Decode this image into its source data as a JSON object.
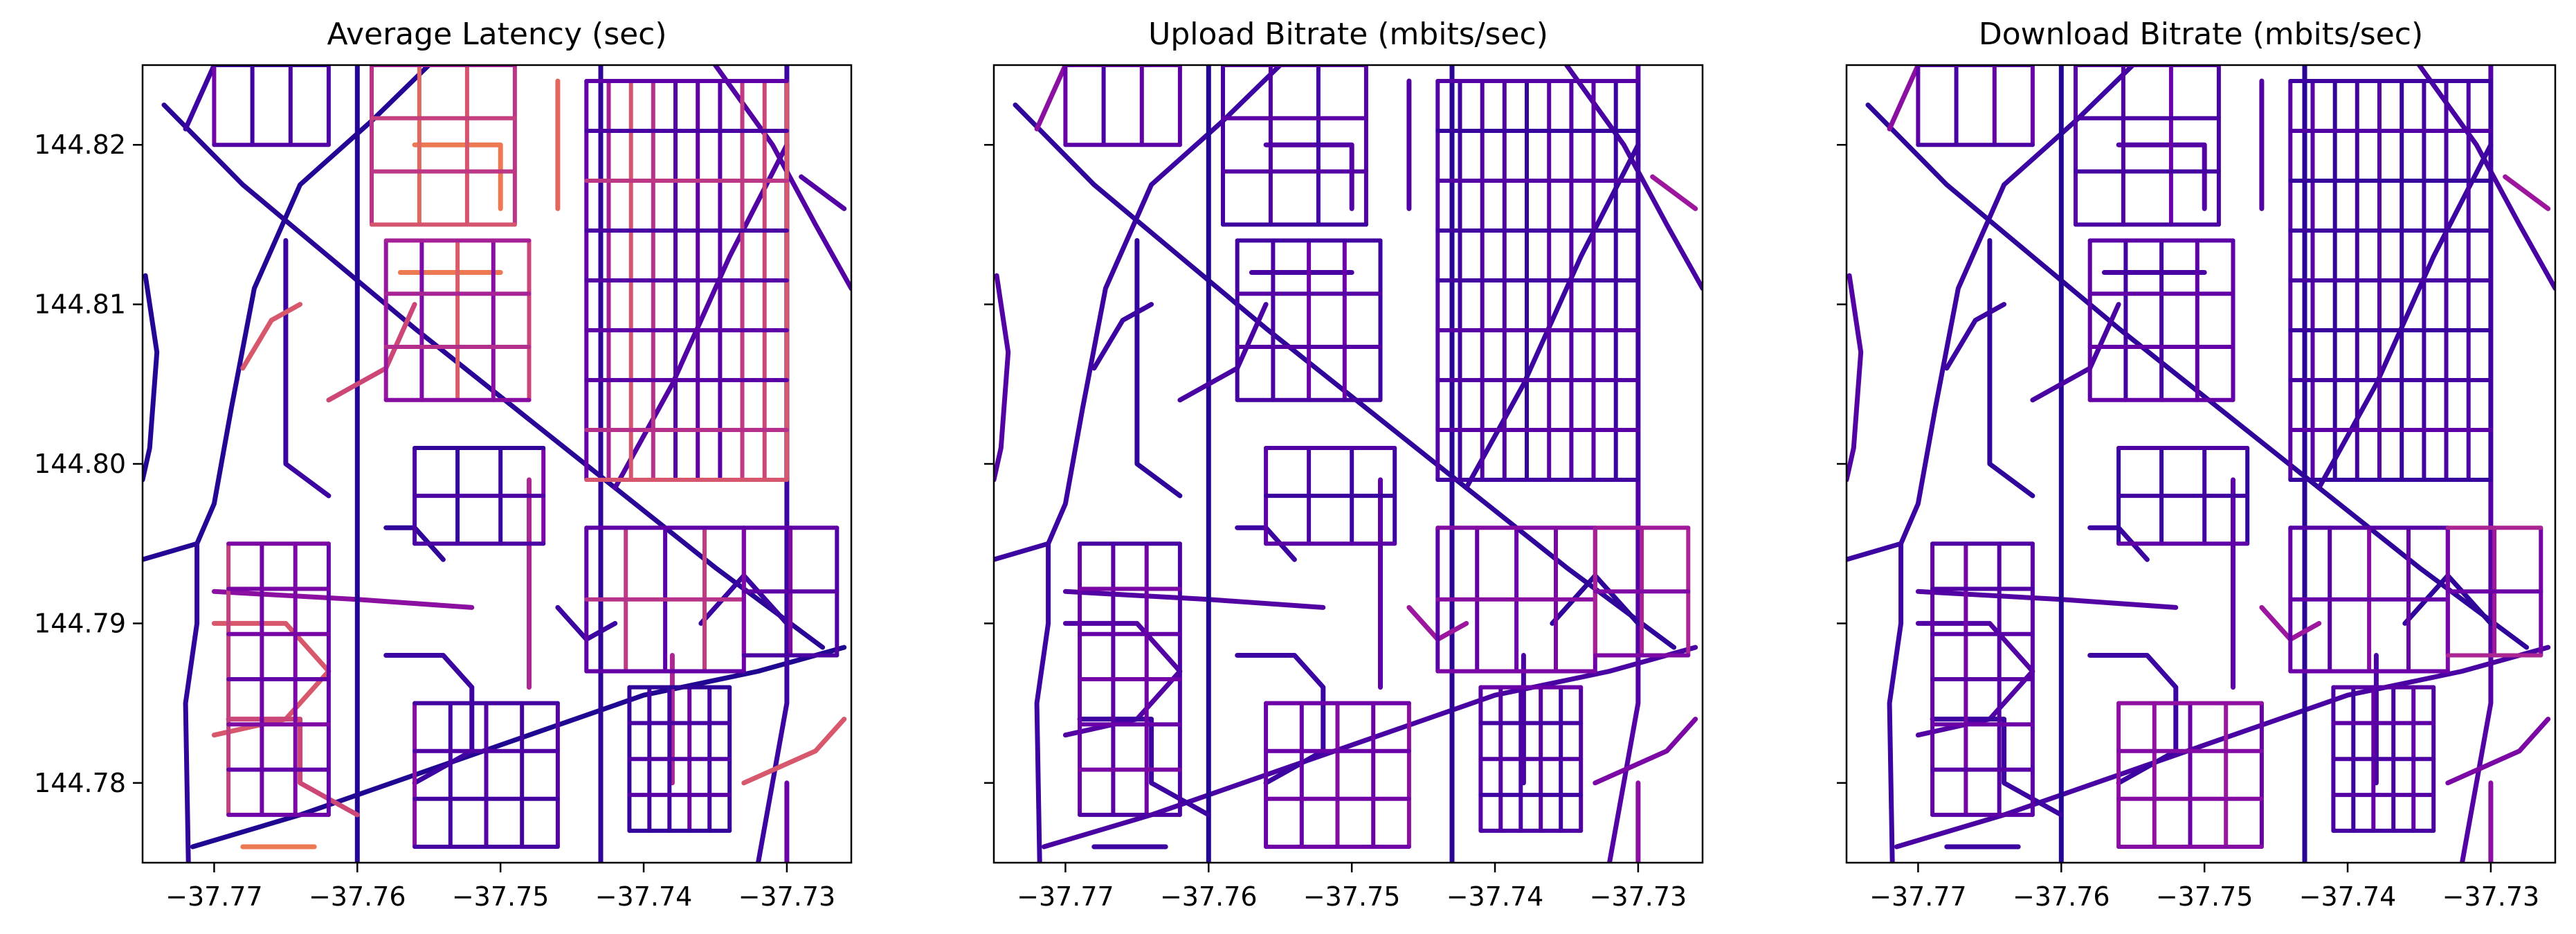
{
  "chart_data": [
    {
      "type": "scatter",
      "title": "Average Latency (sec)",
      "xlabel": "",
      "ylabel": "",
      "xlim": [
        -37.775,
        -37.7255
      ],
      "ylim": [
        144.775,
        144.825
      ],
      "xticks": [
        -37.77,
        -37.76,
        -37.75,
        -37.74,
        -37.73
      ],
      "xtick_labels": [
        "−37.77",
        "−37.76",
        "−37.75",
        "−37.74",
        "−37.73"
      ],
      "yticks": [
        144.78,
        144.79,
        144.8,
        144.81,
        144.82
      ],
      "ytick_labels": [
        "144.78",
        "144.79",
        "144.80",
        "144.81",
        "144.82"
      ],
      "ytick_labels_visible": true,
      "colormap": "plasma",
      "grid": false,
      "legend": "none"
    },
    {
      "type": "scatter",
      "title": "Upload Bitrate (mbits/sec)",
      "xlabel": "",
      "ylabel": "",
      "xlim": [
        -37.775,
        -37.7255
      ],
      "ylim": [
        144.775,
        144.825
      ],
      "xticks": [
        -37.77,
        -37.76,
        -37.75,
        -37.74,
        -37.73
      ],
      "xtick_labels": [
        "−37.77",
        "−37.76",
        "−37.75",
        "−37.74",
        "−37.73"
      ],
      "yticks": [
        144.78,
        144.79,
        144.8,
        144.81,
        144.82
      ],
      "ytick_labels": [
        "144.78",
        "144.79",
        "144.80",
        "144.81",
        "144.82"
      ],
      "ytick_labels_visible": false,
      "colormap": "plasma",
      "grid": false,
      "legend": "none"
    },
    {
      "type": "scatter",
      "title": "Download Bitrate (mbits/sec)",
      "xlabel": "",
      "ylabel": "",
      "xlim": [
        -37.775,
        -37.7255
      ],
      "ylim": [
        144.775,
        144.825
      ],
      "xticks": [
        -37.77,
        -37.76,
        -37.75,
        -37.74,
        -37.73
      ],
      "xtick_labels": [
        "−37.77",
        "−37.76",
        "−37.75",
        "−37.74",
        "−37.73"
      ],
      "yticks": [
        144.78,
        144.79,
        144.8,
        144.81,
        144.82
      ],
      "ytick_labels": [
        "144.78",
        "144.79",
        "144.80",
        "144.81",
        "144.82"
      ],
      "ytick_labels_visible": false,
      "colormap": "plasma",
      "grid": false,
      "legend": "none"
    }
  ],
  "colors": {
    "low": "#1d0f8f",
    "mid_low": "#3a0aa0",
    "mid": "#6a00a8",
    "mid_high": "#9c179e",
    "high": "#e8674e",
    "highest": "#f0894a",
    "frame": "#000000"
  },
  "street_network": {
    "description_units": "data coordinates (x = first axis value, y = second axis value)",
    "streets": [
      {
        "pts": [
          [
            -37.7748,
            144.8118
          ],
          [
            -37.774,
            144.807
          ],
          [
            -37.7745,
            144.801
          ],
          [
            -37.775,
            144.799
          ]
        ],
        "lat": 0.1,
        "up": 0.3,
        "down": 0.3
      },
      {
        "pts": [
          [
            -37.775,
            144.794
          ],
          [
            -37.7712,
            144.795
          ],
          [
            -37.77,
            144.7975
          ],
          [
            -37.7688,
            144.8035
          ],
          [
            -37.7672,
            144.811
          ],
          [
            -37.764,
            144.8175
          ],
          [
            -37.759,
            144.8215
          ],
          [
            -37.755,
            144.825
          ]
        ],
        "lat": 0.1,
        "up": 0.2,
        "down": 0.2
      },
      {
        "pts": [
          [
            -37.7712,
            144.795
          ],
          [
            -37.7712,
            144.79
          ],
          [
            -37.772,
            144.785
          ],
          [
            -37.7718,
            144.775
          ]
        ],
        "lat": 0.15,
        "up": 0.2,
        "down": 0.2
      },
      {
        "pts": [
          [
            -37.7735,
            144.8225
          ],
          [
            -37.768,
            144.8175
          ],
          [
            -37.762,
            144.813
          ],
          [
            -37.756,
            144.8085
          ],
          [
            -37.749,
            144.8035
          ],
          [
            -37.742,
            144.7985
          ],
          [
            -37.735,
            144.7935
          ],
          [
            -37.7275,
            144.7885
          ]
        ],
        "lat": 0.12,
        "up": 0.15,
        "down": 0.15
      },
      {
        "pts": [
          [
            -37.7715,
            144.776
          ],
          [
            -37.764,
            144.778
          ],
          [
            -37.756,
            144.7805
          ],
          [
            -37.748,
            144.783
          ],
          [
            -37.74,
            144.7855
          ],
          [
            -37.732,
            144.787
          ],
          [
            -37.726,
            144.7885
          ]
        ],
        "lat": 0.08,
        "up": 0.25,
        "down": 0.25
      },
      {
        "pts": [
          [
            -37.77,
            144.792
          ],
          [
            -37.76,
            144.7915
          ],
          [
            -37.752,
            144.791
          ]
        ],
        "lat": 0.5,
        "up": 0.3,
        "down": 0.3
      },
      {
        "pts": [
          [
            -37.76,
            144.775
          ],
          [
            -37.76,
            144.825
          ]
        ],
        "lat": 0.1,
        "up": 0.1,
        "down": 0.1
      },
      {
        "pts": [
          [
            -37.743,
            144.775
          ],
          [
            -37.743,
            144.825
          ]
        ],
        "lat": 0.15,
        "up": 0.12,
        "down": 0.12
      },
      {
        "pts": [
          [
            -37.735,
            144.825
          ],
          [
            -37.731,
            144.82
          ],
          [
            -37.728,
            144.815
          ],
          [
            -37.7255,
            144.811
          ]
        ],
        "lat": 0.3,
        "up": 0.25,
        "down": 0.25
      },
      {
        "pts": [
          [
            -37.732,
            144.775
          ],
          [
            -37.73,
            144.785
          ],
          [
            -37.73,
            144.825
          ]
        ],
        "lat": 0.2,
        "up": 0.3,
        "down": 0.3
      },
      {
        "pts": [
          [
            -37.742,
            144.7985
          ],
          [
            -37.738,
            144.805
          ],
          [
            -37.734,
            144.813
          ],
          [
            -37.73,
            144.82
          ]
        ],
        "lat": 0.3,
        "up": 0.2,
        "down": 0.2
      },
      {
        "pts": [
          [
            -37.748,
            144.786
          ],
          [
            -37.748,
            144.799
          ]
        ],
        "lat": 0.6,
        "up": 0.35,
        "down": 0.35
      },
      {
        "pts": [
          [
            -37.765,
            144.814
          ],
          [
            -37.765,
            144.8
          ],
          [
            -37.762,
            144.798
          ]
        ],
        "lat": 0.2,
        "up": 0.15,
        "down": 0.15
      },
      {
        "pts": [
          [
            -37.77,
            144.783
          ],
          [
            -37.765,
            144.784
          ],
          [
            -37.762,
            144.787
          ],
          [
            -37.765,
            144.79
          ],
          [
            -37.77,
            144.79
          ]
        ],
        "lat": 0.75,
        "up": 0.3,
        "down": 0.3
      },
      {
        "pts": [
          [
            -37.758,
            144.788
          ],
          [
            -37.754,
            144.788
          ],
          [
            -37.752,
            144.786
          ],
          [
            -37.752,
            144.782
          ],
          [
            -37.756,
            144.78
          ]
        ],
        "lat": 0.2,
        "up": 0.2,
        "down": 0.2
      },
      {
        "pts": [
          [
            -37.758,
            144.796
          ],
          [
            -37.756,
            144.796
          ],
          [
            -37.754,
            144.794
          ]
        ],
        "lat": 0.15,
        "up": 0.2,
        "down": 0.2
      },
      {
        "pts": [
          [
            -37.746,
            144.816
          ],
          [
            -37.746,
            144.824
          ]
        ],
        "lat": 0.8,
        "up": 0.3,
        "down": 0.3
      },
      {
        "pts": [
          [
            -37.75,
            144.812
          ],
          [
            -37.757,
            144.812
          ]
        ],
        "lat": 0.85,
        "up": 0.25,
        "down": 0.25
      },
      {
        "pts": [
          [
            -37.756,
            144.82
          ],
          [
            -37.75,
            144.82
          ],
          [
            -37.75,
            144.816
          ]
        ],
        "lat": 0.85,
        "up": 0.3,
        "down": 0.3
      },
      {
        "pts": [
          [
            -37.762,
            144.804
          ],
          [
            -37.758,
            144.806
          ],
          [
            -37.756,
            144.81
          ]
        ],
        "lat": 0.7,
        "up": 0.25,
        "down": 0.25
      },
      {
        "pts": [
          [
            -37.768,
            144.806
          ],
          [
            -37.766,
            144.809
          ],
          [
            -37.764,
            144.81
          ]
        ],
        "lat": 0.75,
        "up": 0.2,
        "down": 0.2
      },
      {
        "pts": [
          [
            -37.769,
            144.784
          ],
          [
            -37.764,
            144.784
          ],
          [
            -37.764,
            144.78
          ],
          [
            -37.76,
            144.778
          ]
        ],
        "lat": 0.7,
        "up": 0.2,
        "down": 0.2
      },
      {
        "pts": [
          [
            -37.736,
            144.79
          ],
          [
            -37.733,
            144.793
          ],
          [
            -37.73,
            144.79
          ]
        ],
        "lat": 0.2,
        "up": 0.15,
        "down": 0.15
      },
      {
        "pts": [
          [
            -37.738,
            144.788
          ],
          [
            -37.738,
            144.78
          ]
        ],
        "lat": 0.6,
        "up": 0.25,
        "down": 0.25
      },
      {
        "pts": [
          [
            -37.733,
            144.78
          ],
          [
            -37.728,
            144.782
          ],
          [
            -37.726,
            144.784
          ]
        ],
        "lat": 0.75,
        "up": 0.45,
        "down": 0.45
      },
      {
        "pts": [
          [
            -37.73,
            144.775
          ],
          [
            -37.73,
            144.78
          ]
        ],
        "lat": 0.4,
        "up": 0.5,
        "down": 0.5
      },
      {
        "pts": [
          [
            -37.768,
            144.776
          ],
          [
            -37.763,
            144.776
          ]
        ],
        "lat": 0.85,
        "up": 0.2,
        "down": 0.2
      },
      {
        "pts": [
          [
            -37.746,
            144.791
          ],
          [
            -37.744,
            144.789
          ],
          [
            -37.742,
            144.79
          ]
        ],
        "lat": 0.2,
        "up": 0.55,
        "down": 0.55
      },
      {
        "pts": [
          [
            -37.729,
            144.818
          ],
          [
            -37.726,
            144.816
          ]
        ],
        "lat": 0.3,
        "up": 0.55,
        "down": 0.55
      },
      {
        "pts": [
          [
            -37.772,
            144.821
          ],
          [
            -37.771,
            144.823
          ],
          [
            -37.77,
            144.825
          ]
        ],
        "lat": 0.2,
        "up": 0.5,
        "down": 0.5
      }
    ],
    "grids": [
      {
        "x0": -37.744,
        "x1": -37.73,
        "y0": 144.799,
        "y1": 144.824,
        "nx": 10,
        "ny": 9,
        "lat": 0.25,
        "hot": 0.55,
        "up": 0.15,
        "down": 0.15
      },
      {
        "x0": -37.741,
        "x1": -37.734,
        "y0": 144.777,
        "y1": 144.786,
        "nx": 6,
        "ny": 5,
        "lat": 0.12,
        "hot": 0.2,
        "up": 0.2,
        "down": 0.2
      },
      {
        "x0": -37.756,
        "x1": -37.747,
        "y0": 144.795,
        "y1": 144.801,
        "nx": 4,
        "ny": 3,
        "lat": 0.15,
        "hot": 0.25,
        "up": 0.15,
        "down": 0.15
      },
      {
        "x0": -37.769,
        "x1": -37.762,
        "y0": 144.778,
        "y1": 144.795,
        "nx": 4,
        "ny": 7,
        "lat": 0.35,
        "hot": 0.6,
        "up": 0.25,
        "down": 0.25
      },
      {
        "x0": -37.758,
        "x1": -37.748,
        "y0": 144.804,
        "y1": 144.814,
        "nx": 5,
        "ny": 4,
        "lat": 0.45,
        "hot": 0.6,
        "up": 0.2,
        "down": 0.2
      },
      {
        "x0": -37.759,
        "x1": -37.749,
        "y0": 144.815,
        "y1": 144.825,
        "nx": 4,
        "ny": 4,
        "lat": 0.6,
        "hot": 0.55,
        "up": 0.2,
        "down": 0.2
      },
      {
        "x0": -37.77,
        "x1": -37.762,
        "y0": 144.82,
        "y1": 144.825,
        "nx": 4,
        "ny": 2,
        "lat": 0.15,
        "hot": 0.2,
        "up": 0.2,
        "down": 0.2
      },
      {
        "x0": -37.744,
        "x1": -37.733,
        "y0": 144.787,
        "y1": 144.796,
        "nx": 5,
        "ny": 3,
        "lat": 0.3,
        "hot": 0.45,
        "up": 0.3,
        "down": 0.3
      },
      {
        "x0": -37.756,
        "x1": -37.746,
        "y0": 144.776,
        "y1": 144.785,
        "nx": 5,
        "ny": 4,
        "lat": 0.2,
        "hot": 0.3,
        "up": 0.35,
        "down": 0.35
      },
      {
        "x0": -37.733,
        "x1": -37.7265,
        "y0": 144.788,
        "y1": 144.796,
        "nx": 3,
        "ny": 3,
        "lat": 0.25,
        "hot": 0.45,
        "up": 0.4,
        "down": 0.4
      }
    ]
  }
}
